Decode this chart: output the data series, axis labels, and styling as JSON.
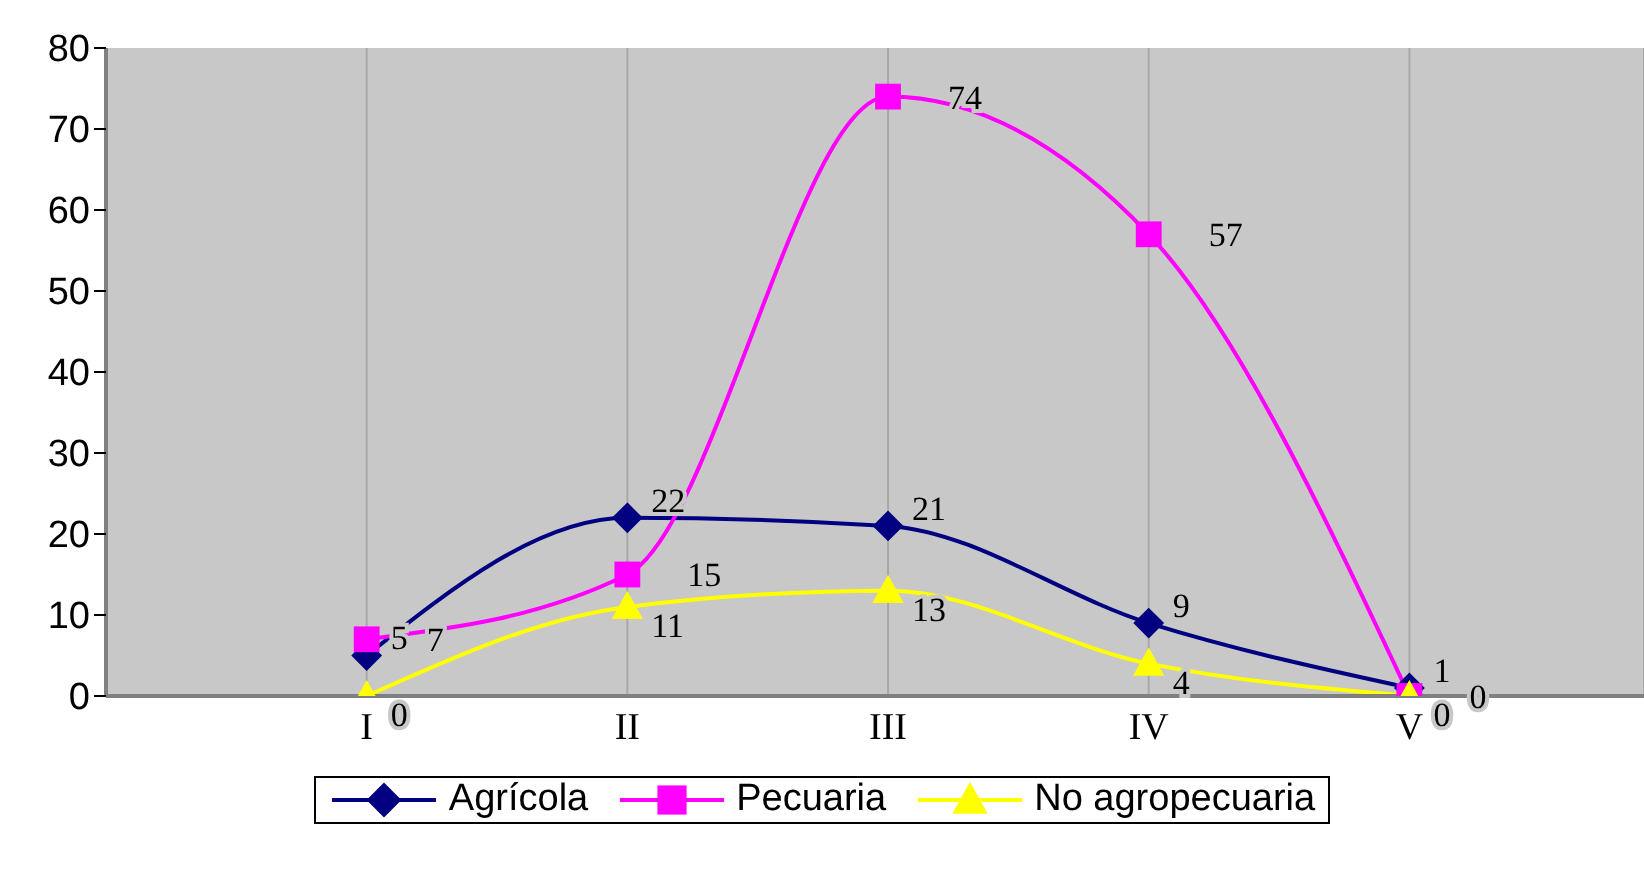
{
  "chart_data": {
    "type": "line",
    "categories": [
      "I",
      "II",
      "III",
      "IV",
      "V"
    ],
    "ylim": [
      0,
      80
    ],
    "yticks": [
      0,
      10,
      20,
      30,
      40,
      50,
      60,
      70,
      80
    ],
    "grid": true,
    "legend": "bottom",
    "data_labels": true,
    "series": [
      {
        "name": "Agrícola",
        "color": "#000080",
        "marker": "diamond",
        "values": [
          5,
          22,
          21,
          9,
          1
        ]
      },
      {
        "name": "Pecuaria",
        "color": "#ff00ff",
        "marker": "square",
        "values": [
          7,
          15,
          74,
          57,
          0
        ]
      },
      {
        "name": "No agropecuaria",
        "color": "#ffff00",
        "marker": "triangle",
        "values": [
          0,
          11,
          13,
          4,
          0
        ]
      }
    ]
  }
}
